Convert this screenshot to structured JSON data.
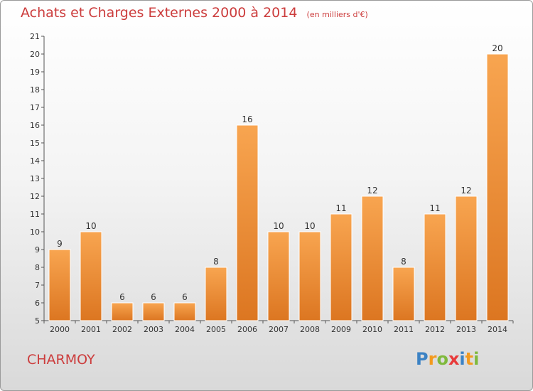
{
  "title": "Achats et Charges Externes 2000 à 2014",
  "subtitle": "(en milliers d'€)",
  "commune": "CHARMOY",
  "logo_text": "Proxiti",
  "colors": {
    "bar_light": "#f8a550",
    "bar_dark": "#dc7621",
    "title": "#cc3d3d"
  },
  "chart_data": {
    "type": "bar",
    "title": "Achats et Charges Externes 2000 à 2014",
    "subtitle": "(en milliers d'€)",
    "categories": [
      "2000",
      "2001",
      "2002",
      "2003",
      "2004",
      "2005",
      "2006",
      "2007",
      "2008",
      "2009",
      "2010",
      "2011",
      "2012",
      "2013",
      "2014"
    ],
    "values": [
      9,
      10,
      6,
      6,
      6,
      8,
      16,
      10,
      10,
      11,
      12,
      8,
      11,
      12,
      20
    ],
    "ylim": [
      5,
      21
    ],
    "yticks": [
      5,
      6,
      7,
      8,
      9,
      10,
      11,
      12,
      13,
      14,
      15,
      16,
      17,
      18,
      19,
      20,
      21
    ],
    "grid": false,
    "xlabel": "",
    "ylabel": ""
  }
}
